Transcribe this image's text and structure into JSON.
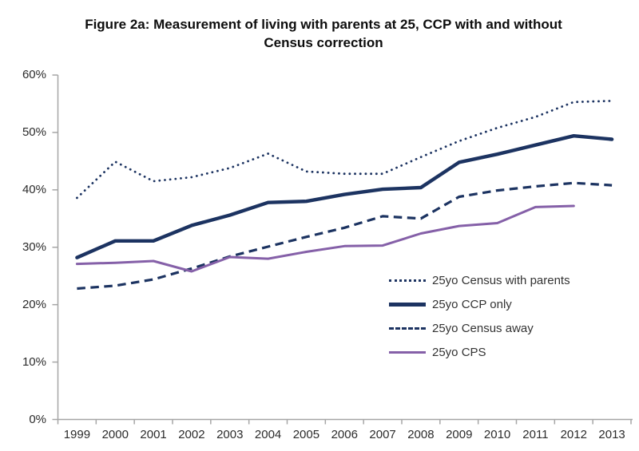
{
  "title": "Figure 2a: Measurement of living with parents at 25, CCP with and without Census correction",
  "colors": {
    "navy": "#1c3361",
    "purple": "#8560a8",
    "axis": "#a6a6a6",
    "tick_text": "#2b2b2b",
    "legend_text": "#333333"
  },
  "y_axis": {
    "tick_labels": [
      "0%",
      "10%",
      "20%",
      "30%",
      "40%",
      "50%",
      "60%"
    ]
  },
  "chart_data": {
    "type": "line",
    "title": "Figure 2a: Measurement of living with parents at 25, CCP with and without Census correction",
    "xlabel": "",
    "ylabel": "",
    "ylim": [
      0,
      60
    ],
    "ytick_step": 10,
    "ytick_format": "percent",
    "grid": false,
    "legend_position": "inside-right",
    "categories": [
      "1999",
      "2000",
      "2001",
      "2002",
      "2003",
      "2004",
      "2005",
      "2006",
      "2007",
      "2008",
      "2009",
      "2010",
      "2011",
      "2012",
      "2013"
    ],
    "series": [
      {
        "name": "25yo Census with parents",
        "style": "dotted",
        "color": "#1c3361",
        "values": [
          38.6,
          44.9,
          41.5,
          42.2,
          43.8,
          46.3,
          43.2,
          42.8,
          42.8,
          45.7,
          48.5,
          50.8,
          52.7,
          55.3,
          55.5
        ]
      },
      {
        "name": "25yo CCP only",
        "style": "solid-thick",
        "color": "#1c3361",
        "values": [
          28.2,
          31.1,
          31.1,
          33.8,
          35.6,
          37.8,
          38.0,
          39.2,
          40.1,
          40.4,
          44.8,
          46.2,
          47.8,
          49.4,
          48.8
        ]
      },
      {
        "name": "25yo Census away",
        "style": "dashed",
        "color": "#1c3361",
        "values": [
          22.8,
          23.3,
          24.4,
          26.3,
          28.4,
          30.1,
          31.8,
          33.4,
          35.4,
          35.0,
          38.8,
          39.9,
          40.6,
          41.2,
          40.8
        ]
      },
      {
        "name": "25yo CPS",
        "style": "solid",
        "color": "#8560a8",
        "values": [
          27.1,
          27.3,
          27.6,
          25.8,
          28.3,
          28.0,
          29.2,
          30.2,
          30.3,
          32.4,
          33.7,
          34.2,
          37.0,
          37.2,
          null
        ]
      }
    ]
  }
}
